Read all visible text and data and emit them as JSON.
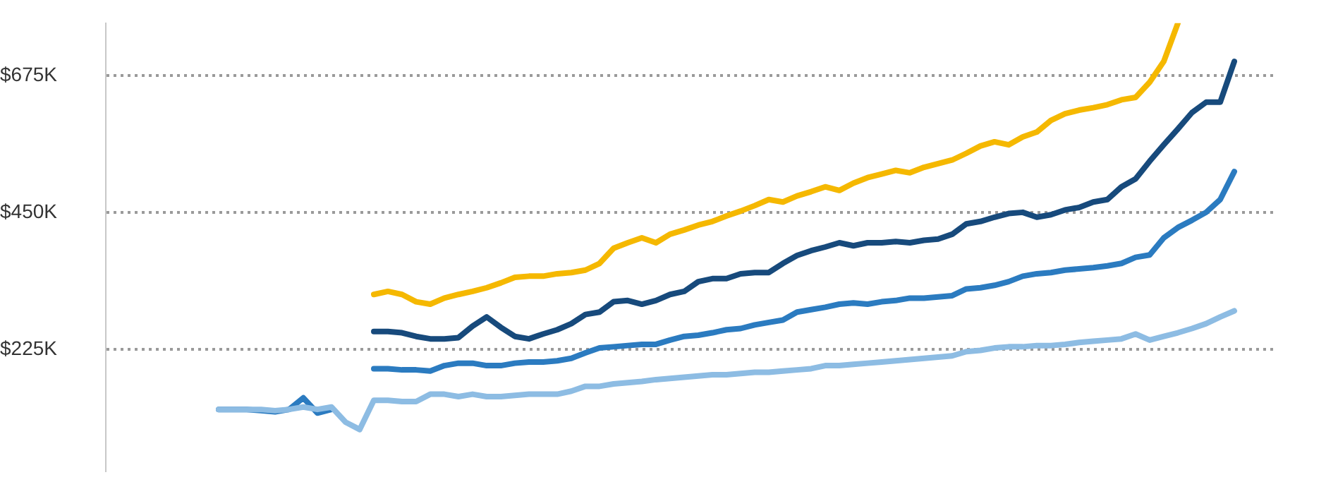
{
  "chart_data": {
    "type": "line",
    "categories": [
      null,
      null,
      null,
      null,
      null,
      null,
      null,
      null,
      null,
      null,
      null,
      null,
      null,
      null,
      null,
      null,
      null,
      null,
      null,
      null,
      null,
      null,
      null,
      null,
      null,
      null,
      null,
      null,
      null,
      null,
      null,
      null,
      null,
      null,
      null,
      null,
      null,
      null,
      null,
      null,
      null,
      null,
      null,
      null,
      null,
      null,
      null,
      null,
      null,
      null,
      null,
      null,
      null,
      null,
      null,
      null,
      null,
      null,
      null,
      null,
      null,
      null,
      null,
      null,
      null,
      null,
      null,
      null,
      null,
      null,
      null,
      null,
      null,
      null,
      null,
      null,
      null,
      null,
      null,
      null,
      null,
      null,
      null,
      null
    ],
    "series": [
      {
        "color": "#8dbce3",
        "values": [
          null,
          null,
          null,
          null,
          null,
          null,
          null,
          null,
          126,
          126,
          126,
          126,
          124,
          126,
          130,
          126,
          130,
          105,
          93,
          141,
          141,
          139,
          139,
          151,
          151,
          147,
          151,
          147,
          147,
          149,
          151,
          151,
          151,
          156,
          164,
          164,
          168,
          170,
          172,
          175,
          177,
          179,
          181,
          183,
          183,
          185,
          187,
          187,
          189,
          191,
          193,
          198,
          198,
          200,
          202,
          204,
          206,
          208,
          210,
          212,
          214,
          221,
          223,
          227,
          229,
          229,
          231,
          231,
          233,
          236,
          238,
          240,
          242,
          250,
          240,
          246,
          252,
          259,
          267,
          278,
          288,
          null,
          null,
          null
        ]
      },
      {
        "color": "#2b7bc0",
        "values": [
          null,
          null,
          null,
          null,
          null,
          null,
          null,
          null,
          126,
          126,
          126,
          124,
          122,
          126,
          145,
          120,
          126,
          null,
          null,
          193,
          193,
          191,
          191,
          189,
          198,
          202,
          202,
          198,
          198,
          202,
          204,
          204,
          206,
          210,
          219,
          227,
          229,
          231,
          233,
          233,
          240,
          246,
          248,
          252,
          257,
          259,
          265,
          269,
          273,
          286,
          290,
          294,
          299,
          301,
          299,
          303,
          305,
          309,
          309,
          311,
          313,
          324,
          326,
          330,
          336,
          345,
          349,
          351,
          355,
          357,
          359,
          362,
          366,
          376,
          380,
          408,
          425,
          437,
          450,
          471,
          517,
          null,
          null,
          null
        ]
      },
      {
        "color": "#174a7c",
        "values": [
          null,
          null,
          null,
          null,
          null,
          null,
          null,
          null,
          null,
          null,
          null,
          null,
          null,
          null,
          null,
          null,
          null,
          null,
          null,
          254,
          254,
          252,
          246,
          242,
          242,
          244,
          263,
          278,
          261,
          246,
          242,
          250,
          257,
          267,
          282,
          286,
          303,
          305,
          299,
          305,
          315,
          320,
          336,
          341,
          341,
          349,
          351,
          351,
          366,
          379,
          387,
          393,
          400,
          395,
          400,
          400,
          402,
          400,
          404,
          406,
          414,
          431,
          435,
          442,
          448,
          450,
          442,
          446,
          454,
          458,
          467,
          471,
          492,
          505,
          534,
          561,
          587,
          614,
          631,
          631,
          698,
          null,
          null,
          null
        ]
      },
      {
        "color": "#f5b800",
        "values": [
          null,
          null,
          null,
          null,
          null,
          null,
          null,
          null,
          null,
          null,
          null,
          null,
          null,
          null,
          null,
          null,
          null,
          null,
          null,
          315,
          320,
          315,
          303,
          299,
          309,
          315,
          320,
          326,
          334,
          343,
          345,
          345,
          349,
          351,
          355,
          366,
          391,
          400,
          408,
          400,
          414,
          421,
          429,
          435,
          444,
          452,
          461,
          471,
          467,
          477,
          484,
          492,
          486,
          498,
          507,
          513,
          519,
          515,
          524,
          530,
          536,
          547,
          559,
          566,
          561,
          574,
          582,
          601,
          612,
          618,
          622,
          627,
          635,
          639,
          664,
          698,
          761,
          null,
          null,
          null,
          null,
          null,
          null,
          null
        ]
      }
    ],
    "ylim": [
      25,
      761
    ],
    "yticks": [
      {
        "value": 225,
        "label": "$225K"
      },
      {
        "value": 450,
        "label": "$450K"
      },
      {
        "value": 675,
        "label": "$675K"
      }
    ],
    "grid": "y",
    "legend": false,
    "tick_labels": "y",
    "marker": "none",
    "line_style": "solid"
  }
}
